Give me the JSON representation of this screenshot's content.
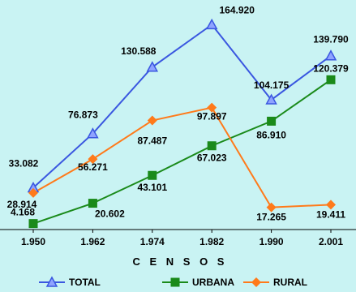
{
  "chart_data": {
    "type": "line",
    "title": "",
    "xlabel": "C E N S O S",
    "ylabel": "",
    "categories": [
      "1.950",
      "1.962",
      "1.974",
      "1.982",
      "1.990",
      "2.001"
    ],
    "ylim": [
      0,
      175000
    ],
    "grid": false,
    "legend_position": "bottom",
    "series": [
      {
        "name": "TOTAL",
        "color": "#3a57e0",
        "marker": "triangle",
        "values": [
          33082,
          76873,
          130588,
          164920,
          104175,
          139790
        ],
        "labels": [
          "33.082",
          "76.873",
          "130.588",
          "164.920",
          "104.175",
          "139.790"
        ]
      },
      {
        "name": "URBANA",
        "color": "#1a8a1a",
        "marker": "square",
        "values": [
          4168,
          20602,
          43101,
          67023,
          86910,
          120379
        ],
        "labels": [
          "4.168",
          "20.602",
          "43.101",
          "67.023",
          "86.910",
          "120.379"
        ]
      },
      {
        "name": "RURAL",
        "color": "#ff7a1a",
        "marker": "diamond",
        "values": [
          28914,
          56271,
          87487,
          97897,
          17265,
          19411
        ],
        "labels": [
          "28.914",
          "56.271",
          "87.487",
          "97.897",
          "17.265",
          "19.411"
        ]
      }
    ]
  }
}
